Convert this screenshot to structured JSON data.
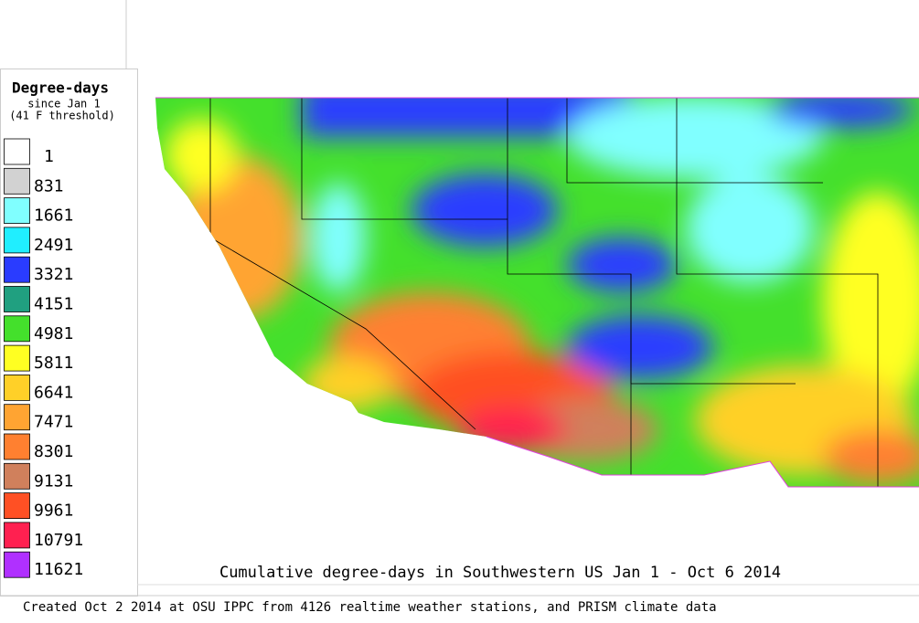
{
  "legend": {
    "title": "Degree-days",
    "subtitle": "since Jan 1",
    "note": "(41 F threshold)",
    "items": [
      {
        "value": 1,
        "color": "#ffffff"
      },
      {
        "value": 831,
        "color": "#d2d2d2"
      },
      {
        "value": 1661,
        "color": "#80ffff"
      },
      {
        "value": 2491,
        "color": "#20eeff"
      },
      {
        "value": 3321,
        "color": "#2a3cff"
      },
      {
        "value": 4151,
        "color": "#20a080"
      },
      {
        "value": 4981,
        "color": "#44e02c"
      },
      {
        "value": 5811,
        "color": "#ffff22"
      },
      {
        "value": 6641,
        "color": "#ffd028"
      },
      {
        "value": 7471,
        "color": "#ffa432"
      },
      {
        "value": 8301,
        "color": "#ff8030"
      },
      {
        "value": 9131,
        "color": "#d0805c"
      },
      {
        "value": 9961,
        "color": "#ff5024"
      },
      {
        "value": 10791,
        "color": "#ff2050"
      },
      {
        "value": 11621,
        "color": "#b030ff"
      }
    ]
  },
  "title": "Cumulative degree-days in Southwestern US Jan 1 - Oct 6 2014",
  "footer": "Created Oct 2 2014 at OSU IPPC from 4126 realtime weather stations, and PRISM climate data"
}
